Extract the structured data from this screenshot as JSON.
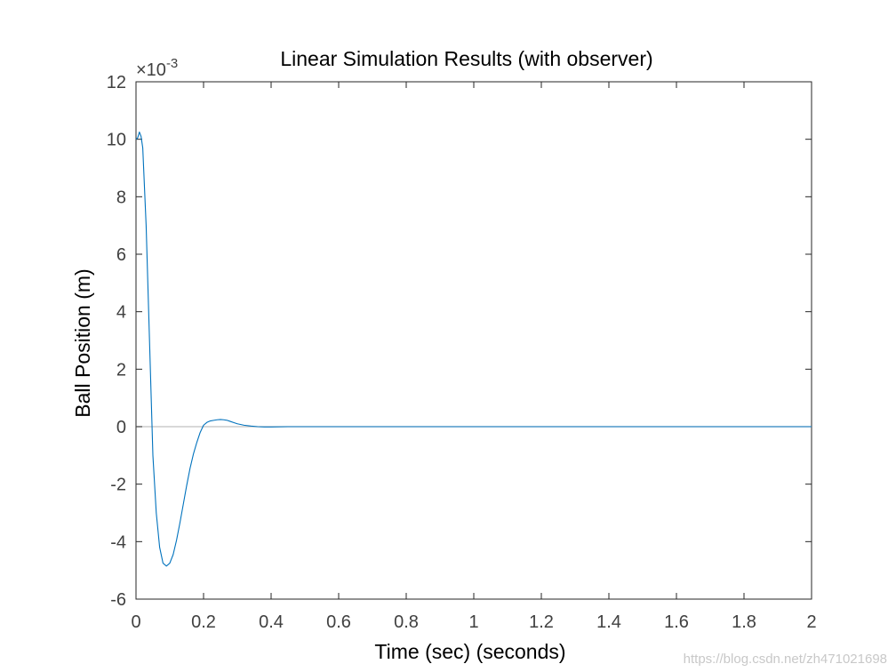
{
  "chart_data": {
    "type": "line",
    "title": "Linear Simulation Results (with observer)",
    "xlabel": "Time (sec) (seconds)",
    "ylabel": "Ball Position (m)",
    "xlim": [
      0,
      2
    ],
    "ylim": [
      -6,
      12
    ],
    "y_multiplier": "×10",
    "y_multiplier_exponent": "-3",
    "x_ticks": [
      0,
      0.2,
      0.4,
      0.6,
      0.8,
      1,
      1.2,
      1.4,
      1.6,
      1.8,
      2
    ],
    "x_tick_labels": [
      "0",
      "0.2",
      "0.4",
      "0.6",
      "0.8",
      "1",
      "1.2",
      "1.4",
      "1.6",
      "1.8",
      "2"
    ],
    "y_ticks": [
      -6,
      -4,
      -2,
      0,
      2,
      4,
      6,
      8,
      10,
      12
    ],
    "y_tick_labels": [
      "-6",
      "-4",
      "-2",
      "0",
      "2",
      "4",
      "6",
      "8",
      "10",
      "12"
    ],
    "grid": false,
    "reference_line_y": 0,
    "series": [
      {
        "color": "#0072bd",
        "x": [
          0,
          0.005,
          0.01,
          0.015,
          0.02,
          0.03,
          0.04,
          0.05,
          0.06,
          0.07,
          0.08,
          0.09,
          0.1,
          0.11,
          0.12,
          0.13,
          0.14,
          0.15,
          0.16,
          0.17,
          0.18,
          0.19,
          0.2,
          0.21,
          0.22,
          0.23,
          0.24,
          0.25,
          0.26,
          0.27,
          0.28,
          0.29,
          0.3,
          0.32,
          0.34,
          0.36,
          0.38,
          0.4,
          0.45,
          0.5,
          0.6,
          0.8,
          1.0,
          1.2,
          1.4,
          1.6,
          1.8,
          2.0
        ],
        "y": [
          10.0,
          10.05,
          10.25,
          10.1,
          9.7,
          7.0,
          3.0,
          -1.0,
          -3.0,
          -4.2,
          -4.75,
          -4.85,
          -4.75,
          -4.45,
          -3.95,
          -3.35,
          -2.7,
          -2.05,
          -1.45,
          -0.95,
          -0.55,
          -0.2,
          0.05,
          0.15,
          0.2,
          0.22,
          0.24,
          0.25,
          0.24,
          0.22,
          0.18,
          0.14,
          0.1,
          0.05,
          0.02,
          0.0,
          -0.01,
          -0.01,
          0.0,
          0.0,
          0.0,
          0.0,
          0.0,
          0.0,
          0.0,
          0.0,
          0.0,
          0.0
        ]
      }
    ]
  },
  "colors": {
    "series": "#0072bd",
    "axes": "#262626",
    "tick_text": "#404040",
    "zero_line": "#c0c0c0"
  },
  "watermark": "https://blog.csdn.net/zh471021698"
}
